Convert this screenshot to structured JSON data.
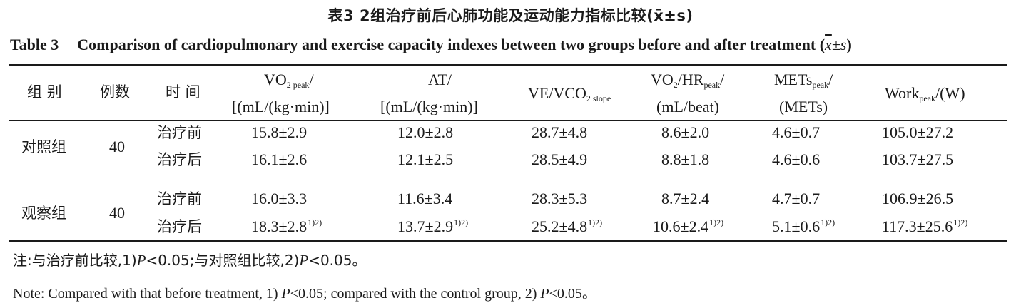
{
  "title_cn": "表3 2组治疗前后心肺功能及运动能力指标比较",
  "title_cn_stat": "(x̄±s)",
  "title_en_label": "Table 3",
  "title_en": "Comparison of cardiopulmonary and exercise capacity indexes between two groups before and after treatment",
  "title_en_stat_x": "x",
  "title_en_stat_rest": "±s",
  "headers": {
    "group": "组 别",
    "count": "例数",
    "time": "时 间",
    "vo2peak_main": "VO",
    "vo2peak_sub": "2 peak",
    "vo2peak_unit": "[(mL/(kg·min)]",
    "at_main": "AT/",
    "at_unit": "[(mL/(kg·min)]",
    "ve_main": "VE/VCO",
    "ve_sub": "2 slope",
    "vo2hr_a": "VO",
    "vo2hr_b": "2",
    "vo2hr_c": "/HR",
    "vo2hr_d": "peak",
    "vo2hr_e": "/",
    "vo2hr_unit": "(mL/beat)",
    "mets_main": "METs",
    "mets_sub": "peak",
    "mets_slash": "/",
    "mets_unit": "(METs)",
    "work_main": "Work",
    "work_sub": "peak",
    "work_unit": "/(W)"
  },
  "rows": [
    {
      "group": "对照组",
      "count": "40",
      "time": "治疗前",
      "vo2peak": "15.8±2.9",
      "at": "12.0±2.8",
      "ve": "28.7±4.8",
      "vo2hr": "8.6±2.0",
      "mets": "4.6±0.7",
      "work": "105.0±27.2"
    },
    {
      "group": "",
      "count": "",
      "time": "治疗后",
      "vo2peak": "16.1±2.6",
      "at": "12.1±2.5",
      "ve": "28.5±4.9",
      "vo2hr": "8.8±1.8",
      "mets": "4.6±0.6",
      "work": "103.7±27.5"
    },
    {
      "group": "观察组",
      "count": "40",
      "time": "治疗前",
      "vo2peak": "16.0±3.3",
      "at": "11.6±3.4",
      "ve": "28.3±5.3",
      "vo2hr": "8.7±2.4",
      "mets": "4.7±0.7",
      "work": "106.9±26.5"
    },
    {
      "group": "",
      "count": "",
      "time": "治疗后",
      "vo2peak": "18.3±2.8",
      "at": "13.7±2.9",
      "ve": "25.2±4.8",
      "vo2hr": "10.6±2.4",
      "mets": "5.1±0.6",
      "work": "117.3±25.6"
    }
  ],
  "sig_mark": "1)2)",
  "note_cn_a": "注:与治疗前比较,1)",
  "note_cn_p1": "P",
  "note_cn_b": "<0.05;与对照组比较,2)",
  "note_cn_p2": "P",
  "note_cn_c": "<0.05。",
  "note_en_a": "Note: Compared with that before treatment, 1)",
  "note_en_p1": "P",
  "note_en_b": "<0.05; compared with the control group, 2)",
  "note_en_p2": "P",
  "note_en_c": "<0.05。"
}
